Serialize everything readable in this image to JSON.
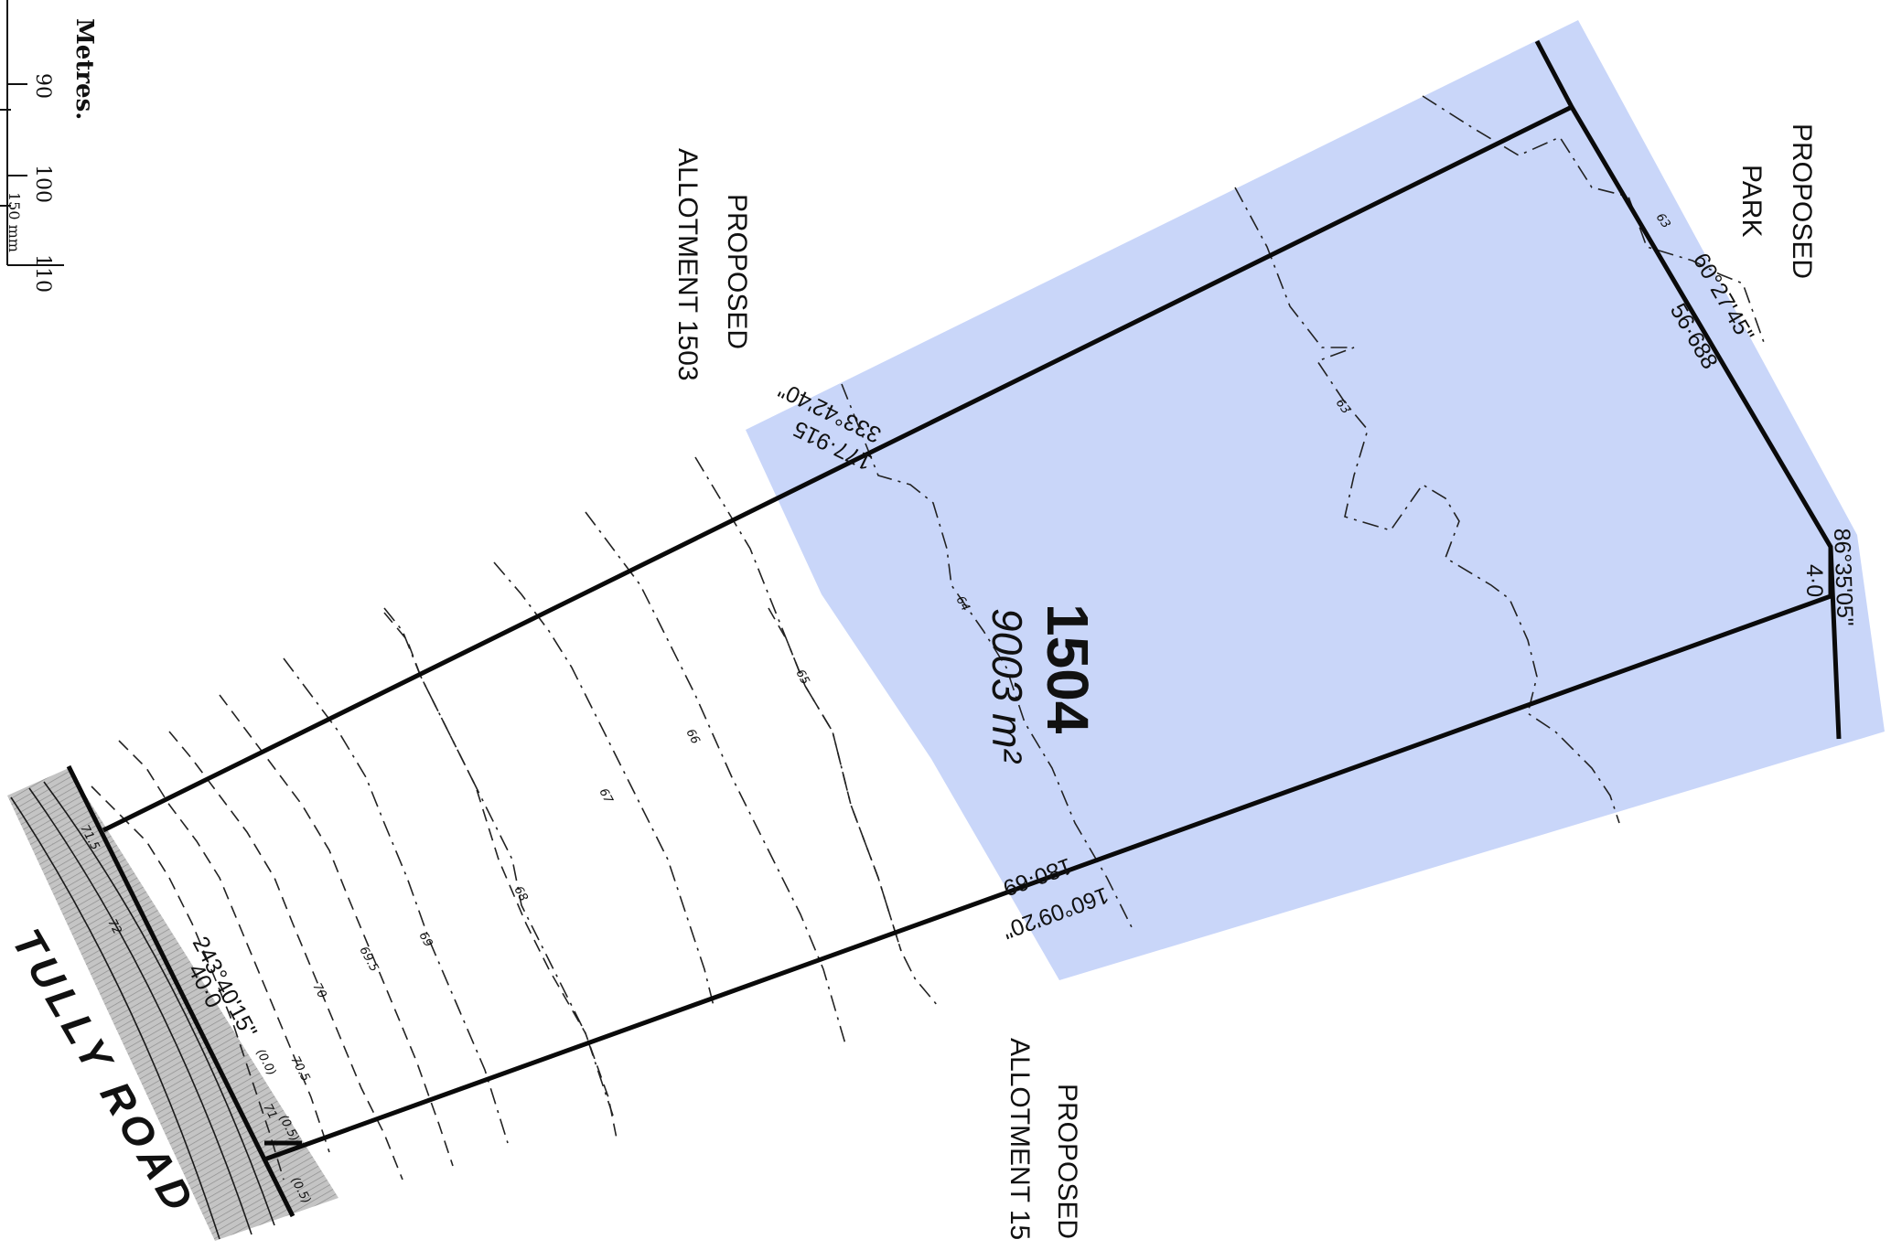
{
  "scale_bar": {
    "unit_label": "Metres.",
    "ticks": [
      "90",
      "100",
      "110"
    ],
    "mm_label": "150 mm"
  },
  "lot": {
    "number": "1504",
    "area": "9003 m²",
    "fill_color": "#c9d6f9"
  },
  "road": {
    "name": "TULLY ROAD",
    "fill_color": "#b8b8b8"
  },
  "neighbours": {
    "allotment_north": {
      "line1": "PROPOSED",
      "line2": "ALLOTMENT 1503"
    },
    "allotment_south": {
      "line1": "PROPOSED",
      "line2": "ALLOTMENT 15"
    },
    "park": {
      "line1": "PROPOSED",
      "line2": "PARK"
    }
  },
  "boundaries": {
    "north": {
      "bearing": "333°42'40\"",
      "distance": "177·915"
    },
    "east": {
      "bearing": "60°27'45\"",
      "distance": "56·688"
    },
    "corner": {
      "bearing": "86°35'05\"",
      "distance": "4·0"
    },
    "south": {
      "bearing": "160°09'20\"",
      "distance": "180·69"
    },
    "frontage": {
      "bearing": "243°40'15\"",
      "distance": "40·0"
    }
  },
  "contours": {
    "labels": [
      "63",
      "63",
      "64",
      "65",
      "66",
      "67",
      "68",
      "69",
      "69.5",
      "70",
      "70.5",
      "71",
      "71.5",
      "72"
    ]
  },
  "spot_heights": [
    "(0.0)",
    "(0.5)",
    "(0.5)"
  ]
}
